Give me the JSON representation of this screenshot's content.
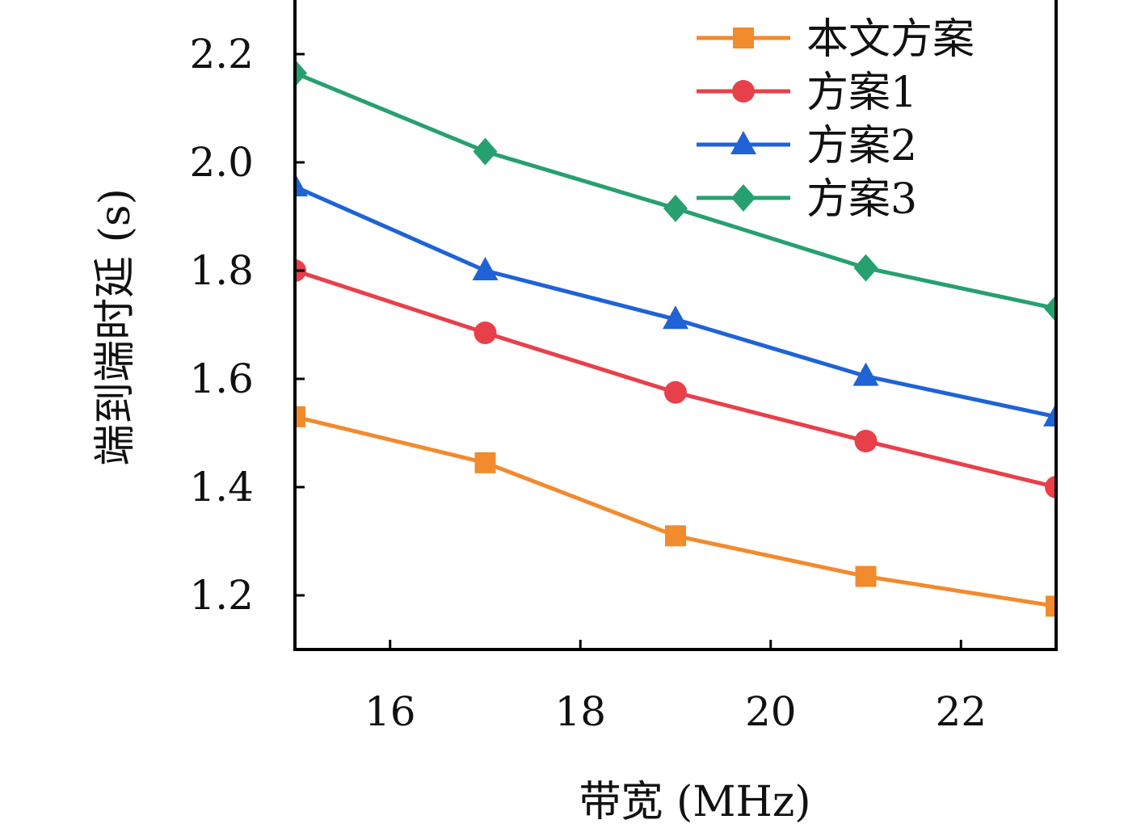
{
  "chart_data": {
    "type": "line",
    "xlabel": "带宽 (MHz)",
    "ylabel": "端到端时延 (s)",
    "xlim": [
      15,
      23
    ],
    "ylim": [
      1.1,
      2.3
    ],
    "xticks": [
      16,
      18,
      20,
      22
    ],
    "xtick_labels": [
      "16",
      "18",
      "20",
      "22"
    ],
    "yticks": [
      1.2,
      1.4,
      1.6,
      1.8,
      2.0,
      2.2
    ],
    "ytick_labels": [
      "1.2",
      "1.4",
      "1.6",
      "1.8",
      "2.0",
      "2.2"
    ],
    "x": [
      15,
      17,
      19,
      21,
      23
    ],
    "grid": false,
    "legend_position": "top-right",
    "series": [
      {
        "name": "本文方案",
        "color": "#f28a2e",
        "marker": "square",
        "values": [
          1.53,
          1.445,
          1.31,
          1.235,
          1.18
        ]
      },
      {
        "name": "方案1",
        "color": "#e8404a",
        "marker": "circle",
        "values": [
          1.8,
          1.685,
          1.575,
          1.485,
          1.4
        ]
      },
      {
        "name": "方案2",
        "color": "#1f63d6",
        "marker": "triangle",
        "values": [
          1.955,
          1.8,
          1.71,
          1.605,
          1.53
        ]
      },
      {
        "name": "方案3",
        "color": "#27a06f",
        "marker": "diamond",
        "values": [
          2.165,
          2.02,
          1.915,
          1.805,
          1.73
        ]
      }
    ]
  }
}
